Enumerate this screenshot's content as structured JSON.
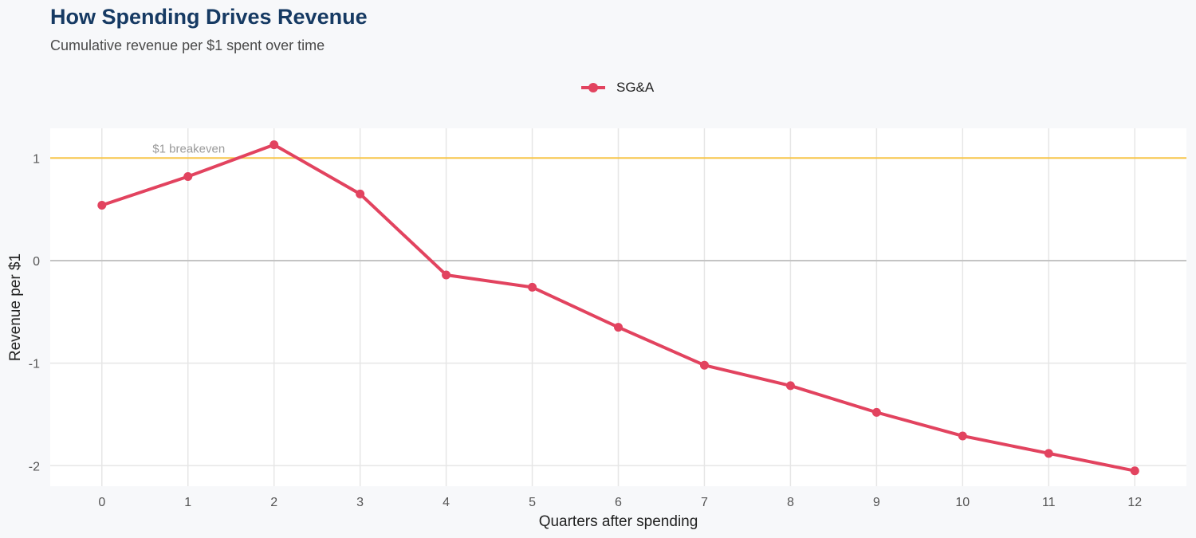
{
  "chart_data": {
    "type": "line",
    "title": "How Spending Drives Revenue",
    "subtitle": "Cumulative revenue per $1 spent over time",
    "xlabel": "Quarters after spending",
    "ylabel": "Revenue per $1",
    "x": [
      0,
      1,
      2,
      3,
      4,
      5,
      6,
      7,
      8,
      9,
      10,
      11,
      12
    ],
    "xticks": [
      "0",
      "1",
      "2",
      "3",
      "4",
      "5",
      "6",
      "7",
      "8",
      "9",
      "10",
      "11",
      "12"
    ],
    "yticks": [
      1,
      0,
      -1,
      -2
    ],
    "ytick_labels": [
      "1",
      "0",
      "-1",
      "-2"
    ],
    "xlim": [
      -0.6,
      12.6
    ],
    "ylim": [
      -2.2,
      1.29
    ],
    "series": [
      {
        "name": "SG&A",
        "color": "#e2435f",
        "values": [
          0.54,
          0.82,
          1.13,
          0.65,
          -0.14,
          -0.26,
          -0.65,
          -1.02,
          -1.22,
          -1.48,
          -1.71,
          -1.88,
          -2.05
        ]
      }
    ],
    "reference_line": {
      "y": 1,
      "label": "$1 breakeven",
      "color": "#f7c54a"
    },
    "zero_line_color": "#c4c4c4",
    "grid": true,
    "legend_position": "top-center"
  }
}
